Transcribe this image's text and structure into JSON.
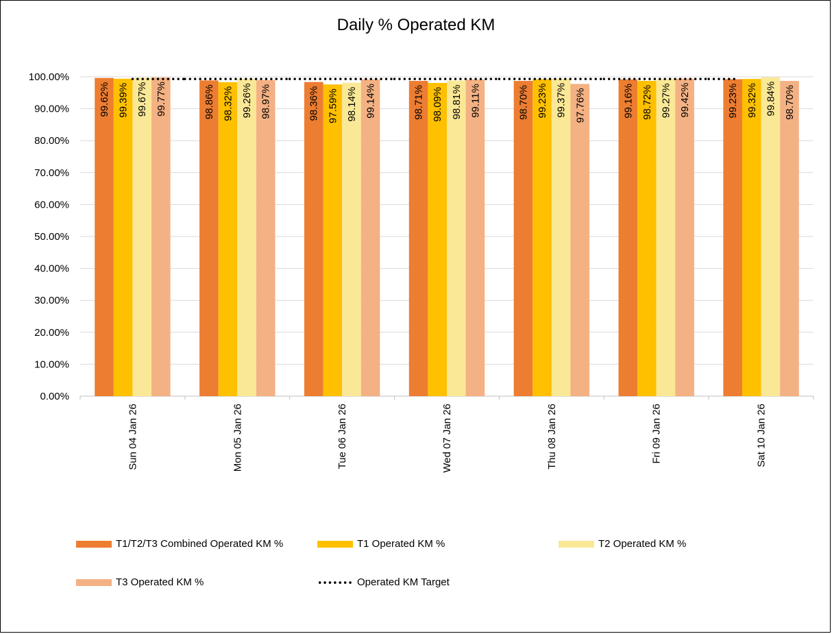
{
  "chart_data": {
    "type": "bar",
    "title": "Daily % Operated KM",
    "categories": [
      "Sun 04 Jan 26",
      "Mon 05 Jan 26",
      "Tue 06 Jan 26",
      "Wed 07 Jan 26",
      "Thu 08 Jan 26",
      "Fri 09 Jan 26",
      "Sat 10 Jan 26"
    ],
    "series": [
      {
        "name": "T1/T2/T3 Combined Operated KM %",
        "color": "#ED7D31",
        "values": [
          99.62,
          98.86,
          98.36,
          98.71,
          98.7,
          99.16,
          99.23
        ]
      },
      {
        "name": "T1 Operated KM %",
        "color": "#FFC000",
        "values": [
          99.39,
          98.32,
          97.59,
          98.09,
          99.23,
          98.72,
          99.32
        ]
      },
      {
        "name": "T2 Operated KM %",
        "color": "#FAE896",
        "values": [
          99.67,
          99.26,
          98.14,
          98.81,
          99.37,
          99.27,
          99.84
        ]
      },
      {
        "name": "T3 Operated KM %",
        "color": "#F4B183",
        "values": [
          99.77,
          98.97,
          99.14,
          99.11,
          97.76,
          99.42,
          98.7
        ]
      }
    ],
    "target": {
      "name": "Operated KM Target",
      "type": "line",
      "style": "dotted",
      "color": "#000000",
      "values": [
        99.3,
        99.3,
        99.3,
        99.3,
        99.3,
        99.3,
        99.3
      ]
    },
    "y_ticks": [
      "0.00%",
      "10.00%",
      "20.00%",
      "30.00%",
      "40.00%",
      "50.00%",
      "60.00%",
      "70.00%",
      "80.00%",
      "90.00%",
      "100.00%"
    ],
    "ylim": [
      0,
      100
    ],
    "ytick_step": 10,
    "value_label_suffix": "%",
    "grid": true,
    "legend_position": "bottom"
  }
}
